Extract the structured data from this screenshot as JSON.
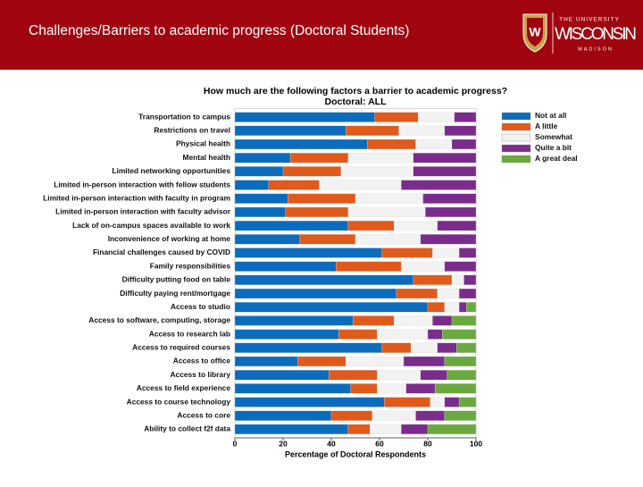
{
  "header": {
    "title": "Challenges/Barriers to academic progress (Doctoral Students)",
    "logo": {
      "top": "THE UNIVERSITY",
      "name": "WISCONSIN",
      "bottom": "MADISON"
    }
  },
  "chart_data": {
    "type": "bar",
    "orientation": "horizontal",
    "stacked": true,
    "title": "How much are the following factors a barrier to academic progress?",
    "subtitle": "Doctoral: ALL",
    "xlabel": "Percentage of Doctoral Respondents",
    "xlim": [
      0,
      100
    ],
    "xticks": [
      0,
      20,
      40,
      60,
      80,
      100
    ],
    "legend": "right",
    "categories": [
      "Transportation to campus",
      "Restrictions on travel",
      "Physical health",
      "Mental health",
      "Limited networking opportunities",
      "Limited in-person interaction with fellow students",
      "Limited in-person interaction with faculty in program",
      "Limited in-person interaction with faculty advisor",
      "Lack of on-campus spaces available to work",
      "Inconvenience of working at home",
      "Financial challenges caused by COVID",
      "Family responsibilities",
      "Difficulty putting food on table",
      "Difficulty paying rent/mortgage",
      "Access to studio",
      "Access to software, computing, storage",
      "Access to research lab",
      "Access to required courses",
      "Access to office",
      "Access to library",
      "Access to field experience",
      "Access to course technology",
      "Access to core",
      "Ability to collect f2f data"
    ],
    "series": [
      {
        "name": "Not at all",
        "color": "#0b6cbd",
        "values": [
          58,
          46,
          55,
          23,
          20,
          14,
          22,
          21,
          47,
          27,
          61,
          42,
          74,
          67,
          80,
          49,
          43,
          61,
          26,
          39,
          48,
          62,
          40,
          47
        ]
      },
      {
        "name": "A little",
        "color": "#e05a1c",
        "values": [
          18,
          22,
          20,
          24,
          24,
          21,
          28,
          26,
          19,
          23,
          21,
          27,
          16,
          17,
          7,
          17,
          16,
          12,
          20,
          20,
          11,
          19,
          17,
          9
        ]
      },
      {
        "name": "Somewhat",
        "color": "#f2f2f2",
        "values": [
          15,
          19,
          15,
          27,
          30,
          34,
          28,
          32,
          18,
          27,
          11,
          18,
          5,
          9,
          6,
          16,
          21,
          11,
          24,
          18,
          12,
          6,
          18,
          13
        ]
      },
      {
        "name": "Quite a bit",
        "color": "#7a2c8c",
        "values": [
          9,
          13,
          10,
          26,
          26,
          31,
          22,
          21,
          16,
          23,
          7,
          13,
          5,
          7,
          3,
          8,
          6,
          8,
          17,
          11,
          12,
          6,
          12,
          11
        ]
      },
      {
        "name": "A great deal",
        "color": "#6aa93e",
        "values": [
          0,
          0,
          0,
          0,
          0,
          0,
          0,
          0,
          0,
          0,
          0,
          0,
          0,
          0,
          4,
          10,
          14,
          8,
          13,
          12,
          17,
          7,
          13,
          20
        ]
      }
    ]
  }
}
